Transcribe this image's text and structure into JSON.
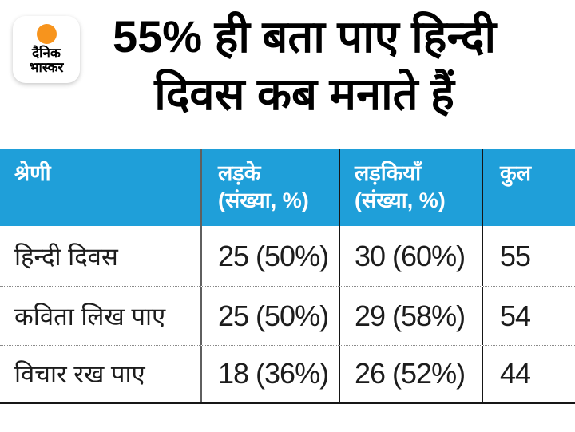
{
  "brand": {
    "line1": "दैनिक",
    "line2": "भास्कर",
    "logo_accent_color": "#F7941D"
  },
  "title": {
    "line1": "55% ही बता पाए हिन्दी",
    "line2": "दिवस कब मनाते हैं"
  },
  "colors": {
    "header_bg": "#1F9FD9",
    "header_text": "#FFFFFF",
    "body_text": "#1C1C1C",
    "accent_orange": "#F7941D"
  },
  "table": {
    "header": [
      {
        "line1": "श्रेणी",
        "line2": ""
      },
      {
        "line1": "लड़के",
        "line2": "(संख्या, %)"
      },
      {
        "line1": "लड़कियाँ",
        "line2": "(संख्या, %)"
      },
      {
        "line1": "कुल",
        "line2": ""
      }
    ],
    "rows": [
      {
        "category": "हिन्दी दिवस",
        "boys": "25 (50%)",
        "girls": "30 (60%)",
        "total": "55"
      },
      {
        "category": "कविता लिख पाए",
        "boys": "25 (50%)",
        "girls": "29 (58%)",
        "total": "54"
      },
      {
        "category": "विचार रख पाए",
        "boys": "18 (36%)",
        "girls": "26 (52%)",
        "total": "44"
      }
    ]
  },
  "chart_data": {
    "type": "table",
    "title": "55% ही बता पाए हिन्दी दिवस कब मनाते हैं",
    "columns": [
      "श्रेणी",
      "लड़के (संख्या, %)",
      "लड़कियाँ (संख्या, %)",
      "कुल"
    ],
    "rows": [
      [
        "हिन्दी दिवस",
        "25 (50%)",
        "30 (60%)",
        "55"
      ],
      [
        "कविता लिख पाए",
        "25 (50%)",
        "29 (58%)",
        "54"
      ],
      [
        "विचार रख पाए",
        "18 (36%)",
        "26 (52%)",
        "44"
      ]
    ],
    "series": [
      {
        "name": "लड़के संख्या",
        "values": [
          25,
          25,
          18
        ]
      },
      {
        "name": "लड़के %",
        "values": [
          50,
          50,
          36
        ]
      },
      {
        "name": "लड़कियाँ संख्या",
        "values": [
          30,
          29,
          26
        ]
      },
      {
        "name": "लड़कियाँ %",
        "values": [
          60,
          58,
          52
        ]
      },
      {
        "name": "कुल",
        "values": [
          55,
          54,
          44
        ]
      }
    ],
    "categories": [
      "हिन्दी दिवस",
      "कविता लिख पाए",
      "विचार रख पाए"
    ]
  }
}
